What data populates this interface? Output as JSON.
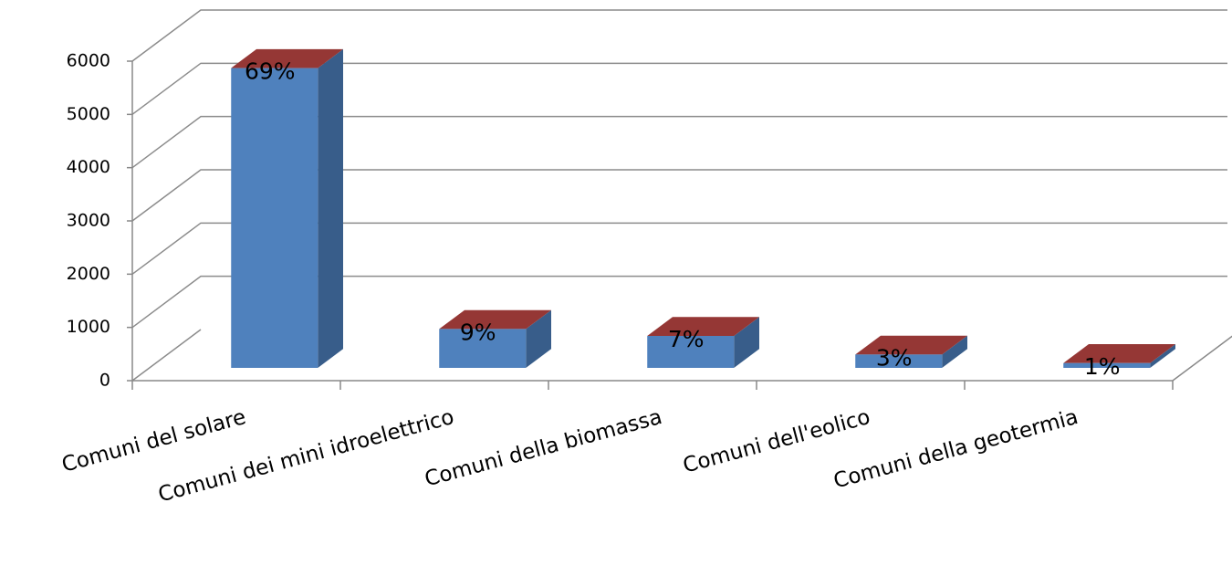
{
  "chart_data": {
    "type": "bar3d",
    "categories": [
      "Comuni del solare",
      "Comuni dei mini idroelettrico",
      "Comuni della biomassa",
      "Comuni dell'eolico",
      "Comuni della geotermia"
    ],
    "values": [
      5630,
      730,
      600,
      250,
      90
    ],
    "percent_labels": [
      "69%",
      "9%",
      "7%",
      "3%",
      "1%"
    ],
    "color": "#4f81bd",
    "side_color": "#385d8a",
    "top_color": "#953735",
    "ylim": [
      0,
      6000
    ],
    "yticks": [
      0,
      1000,
      2000,
      3000,
      4000,
      5000,
      6000
    ],
    "grid": true
  }
}
